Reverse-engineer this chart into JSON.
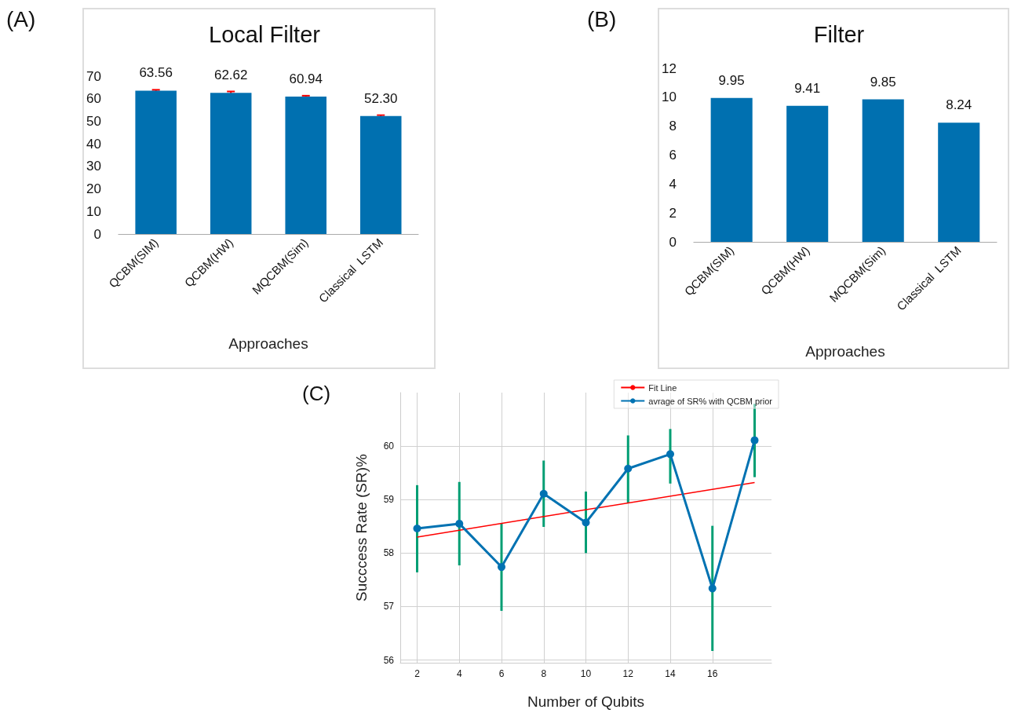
{
  "chart_data": [
    {
      "type": "bar",
      "title": "Local Filter",
      "xlabel": "Approaches",
      "annotations": [
        "(A)"
      ],
      "categories": [
        "QCBM(SIM)",
        "QCBM(HW)",
        "MQCBM(Sim)",
        "Classical  LSTM"
      ],
      "series": [
        {
          "color": "#0070b0",
          "values": [
            63.56,
            62.62,
            60.94,
            52.3
          ],
          "errors": [
            0.4,
            0.6,
            0.4,
            0.4
          ]
        }
      ],
      "ylim": [
        0,
        70
      ],
      "yticks": [
        0,
        10,
        20,
        30,
        40,
        50,
        60,
        70
      ],
      "value_labels": [
        "63.56",
        "62.62",
        "60.94",
        "52.30"
      ]
    },
    {
      "type": "bar",
      "title": "Filter",
      "xlabel": "Approaches",
      "annotations": [
        "(B)"
      ],
      "categories": [
        "QCBM(SIM)",
        "QCBM(HW)",
        "MQCBM(Sim)",
        "Classical  LSTM"
      ],
      "series": [
        {
          "color": "#0070b0",
          "values": [
            9.95,
            9.41,
            9.85,
            8.24
          ]
        }
      ],
      "ylim": [
        0,
        12
      ],
      "yticks": [
        0,
        2,
        4,
        6,
        8,
        10,
        12
      ],
      "data_labels": true
    },
    {
      "type": "line",
      "xlabel": "Number of Qubits",
      "ylabel": "Succcess Rate (SR)%",
      "annotations": [
        "(C)"
      ],
      "grid": true,
      "legend": "top right",
      "marker": "circle",
      "series": [
        {
          "name": "Fit Line",
          "color": "#ff0000",
          "marker": "none",
          "x": [
            2,
            18
          ],
          "values": [
            58.3,
            59.32
          ]
        },
        {
          "name": "avrage of SR% with QCBM prior",
          "color": "#0072b2",
          "x": [
            2,
            4,
            6,
            8,
            10,
            12,
            14,
            16,
            18
          ],
          "values": [
            58.46,
            58.55,
            57.74,
            59.11,
            58.57,
            59.58,
            59.85,
            57.34,
            60.11
          ],
          "errors": [
            [
              57.64,
              59.27
            ],
            [
              57.77,
              59.33
            ],
            [
              56.92,
              58.56
            ],
            [
              58.49,
              59.73
            ],
            [
              58.0,
              59.15
            ],
            [
              58.94,
              60.2
            ],
            [
              59.3,
              60.32
            ],
            [
              56.17,
              58.51
            ],
            [
              59.42,
              60.79
            ]
          ]
        }
      ],
      "xlim": [
        1.2,
        18.8
      ],
      "xticks": [
        2,
        4,
        6,
        8,
        10,
        12,
        14,
        16
      ],
      "ylim": [
        55.95,
        61
      ],
      "yticks": [
        56,
        57,
        58,
        59,
        60
      ]
    }
  ]
}
